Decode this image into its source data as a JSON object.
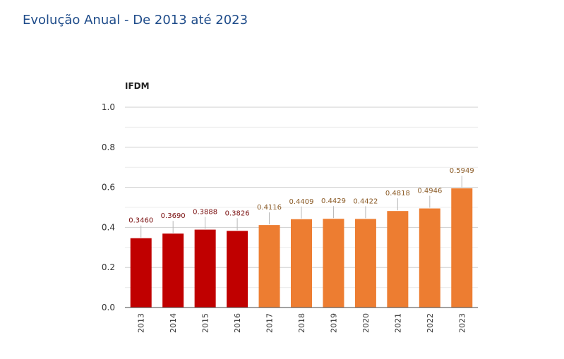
{
  "page": {
    "title": "Evolução Anual - De 2013 até 2023"
  },
  "chart_data": {
    "type": "bar",
    "ylabel": "IFDM",
    "xlabel": "",
    "ylim": [
      0,
      1.0
    ],
    "yticks": [
      "0.0",
      "0.2",
      "0.4",
      "0.6",
      "0.8",
      "1.0"
    ],
    "grid": true,
    "legend": "none",
    "categories": [
      "2013",
      "2014",
      "2015",
      "2016",
      "2017",
      "2018",
      "2019",
      "2020",
      "2021",
      "2022",
      "2023"
    ],
    "values": [
      0.346,
      0.369,
      0.3888,
      0.3826,
      0.4116,
      0.4409,
      0.4429,
      0.4422,
      0.4818,
      0.4946,
      0.5949
    ],
    "value_labels": [
      "0.3460",
      "0.3690",
      "0.3888",
      "0.3826",
      "0.4116",
      "0.4409",
      "0.4429",
      "0.4422",
      "0.4818",
      "0.4946",
      "0.5949"
    ],
    "bar_colors": [
      "#c00000",
      "#c00000",
      "#c00000",
      "#c00000",
      "#ed7d31",
      "#ed7d31",
      "#ed7d31",
      "#ed7d31",
      "#ed7d31",
      "#ed7d31",
      "#ed7d31"
    ],
    "label_colors": [
      "#7a1010",
      "#7a1010",
      "#7a1010",
      "#7a1010",
      "#8a5a25",
      "#8a5a25",
      "#8a5a25",
      "#8a5a25",
      "#8a5a25",
      "#8a5a25",
      "#8a5a25"
    ]
  }
}
